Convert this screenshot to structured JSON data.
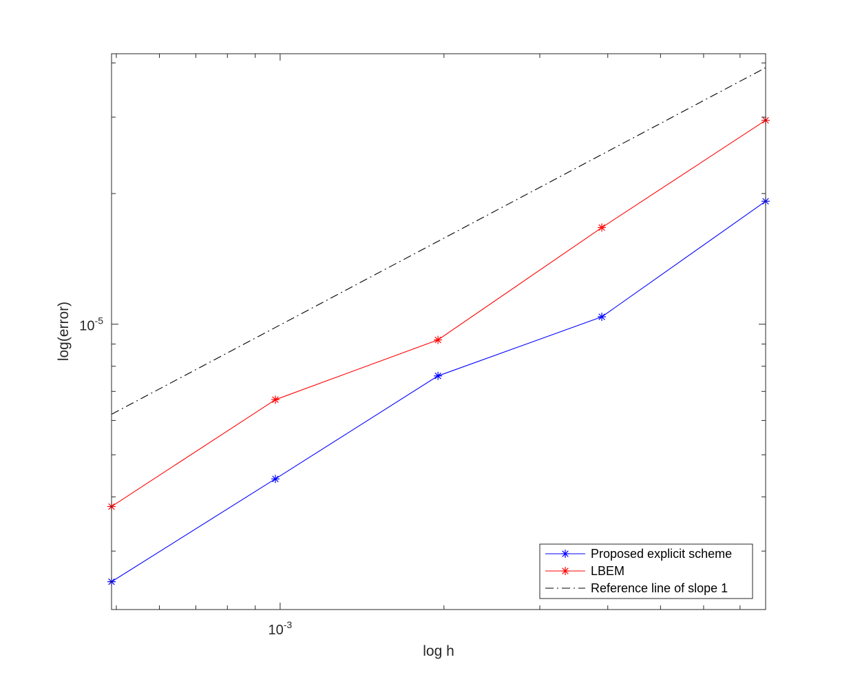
{
  "chart_data": {
    "type": "line",
    "xscale": "log",
    "yscale": "log",
    "xlabel": "log h",
    "ylabel": "log(error)",
    "xlim": [
      0.00049,
      0.0078
    ],
    "ylim": [
      2.2e-06,
      4.2e-05
    ],
    "x_tick_labels": [
      {
        "value": 0.001,
        "base": "10",
        "exp": "-3"
      }
    ],
    "y_tick_labels": [
      {
        "value": 1e-05,
        "base": "10",
        "exp": "-5"
      }
    ],
    "grid": false,
    "legend_position": "bottom-right",
    "series": [
      {
        "name": "Proposed explicit scheme",
        "color": "#0000ff",
        "line": "solid",
        "marker": "asterisk",
        "x": [
          0.00049,
          0.00098,
          0.00195,
          0.0039,
          0.0078
        ],
        "y": [
          2.55e-06,
          4.4e-06,
          7.6e-06,
          1.04e-05,
          1.92e-05
        ]
      },
      {
        "name": "LBEM",
        "color": "#ff0000",
        "line": "solid",
        "marker": "asterisk",
        "x": [
          0.00049,
          0.00098,
          0.00195,
          0.0039,
          0.0078
        ],
        "y": [
          3.8e-06,
          6.7e-06,
          9.2e-06,
          1.67e-05,
          2.95e-05
        ]
      },
      {
        "name": "Reference line of slope 1",
        "color": "#000000",
        "line": "dashdot",
        "marker": "none",
        "x": [
          0.00049,
          0.0078
        ],
        "y": [
          6.2e-06,
          3.9e-05
        ]
      }
    ]
  }
}
